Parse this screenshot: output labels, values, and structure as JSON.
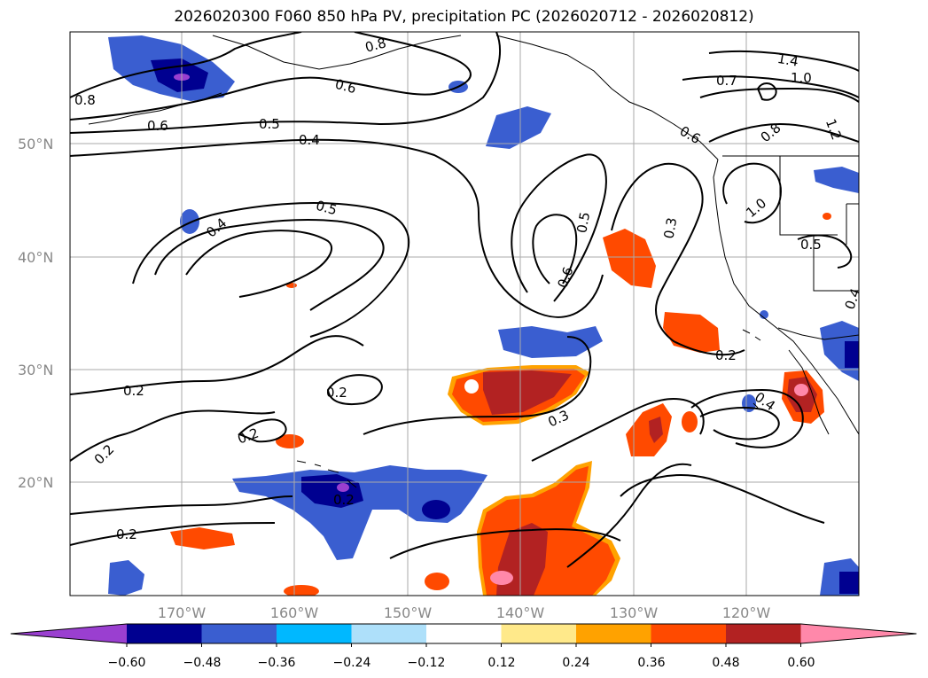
{
  "title": "2026020300 F060 850 hPa PV, precipitation PC (2026020712 - 2026020812)",
  "lat_labels": [
    "50°N",
    "40°N",
    "30°N",
    "20°N"
  ],
  "lon_labels": [
    "170°W",
    "160°W",
    "150°W",
    "140°W",
    "130°W",
    "120°W"
  ],
  "contour_labels": [
    "0.8",
    "0.6",
    "0.5",
    "0.4",
    "0.4",
    "0.5",
    "0.2",
    "0.2",
    "0.2",
    "0.2",
    "0.2",
    "0.2",
    "0.6",
    "0.5",
    "0.6",
    "0.3",
    "0.3",
    "0.7",
    "1.0",
    "1.4",
    "0.8",
    "1.0",
    "0.5",
    "0.2",
    "0.4",
    "1.2",
    "0.6",
    "0.8",
    "0.4"
  ],
  "colorbar": {
    "ticks": [
      "−0.60",
      "−0.48",
      "−0.36",
      "−0.24",
      "−0.12",
      "0.12",
      "0.24",
      "0.36",
      "0.48",
      "0.60"
    ],
    "colors": [
      "#9a3fd0",
      "#000090",
      "#3a5ed0",
      "#00b8ff",
      "#aee0fa",
      "#ffffff",
      "#ffe98a",
      "#ffa200",
      "#ff4a00",
      "#b22222",
      "#ff88aa",
      "#ff88aa"
    ],
    "extend": "both"
  },
  "colors": {
    "contour": "#000000",
    "grid": "#aaaaaa"
  }
}
